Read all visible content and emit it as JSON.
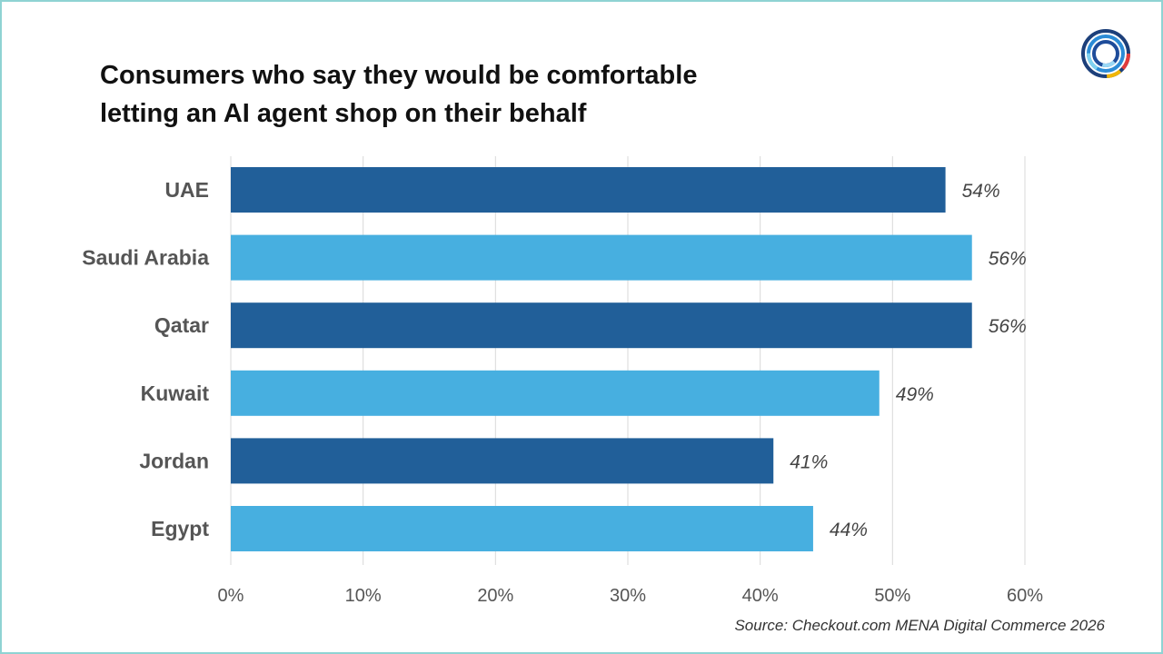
{
  "chart_data": {
    "type": "bar",
    "orientation": "horizontal",
    "title_lines": [
      "Consumers who say they would be comfortable",
      "letting an AI agent shop on their behalf"
    ],
    "categories": [
      "UAE",
      "Saudi Arabia",
      "Qatar",
      "Kuwait",
      "Jordan",
      "Egypt"
    ],
    "values": [
      54,
      56,
      56,
      49,
      41,
      44
    ],
    "value_labels": [
      "54%",
      "56%",
      "56%",
      "49%",
      "41%",
      "44%"
    ],
    "bar_colors": [
      "#215f99",
      "#47afe0",
      "#215f99",
      "#47afe0",
      "#215f99",
      "#47afe0"
    ],
    "xlim": [
      0,
      60
    ],
    "x_ticks": [
      0,
      10,
      20,
      30,
      40,
      50,
      60
    ],
    "x_tick_labels": [
      "0%",
      "10%",
      "20%",
      "30%",
      "40%",
      "50%",
      "60%"
    ],
    "grid": "vertical",
    "source": "Source: Checkout.com MENA Digital Commerce 2026"
  }
}
